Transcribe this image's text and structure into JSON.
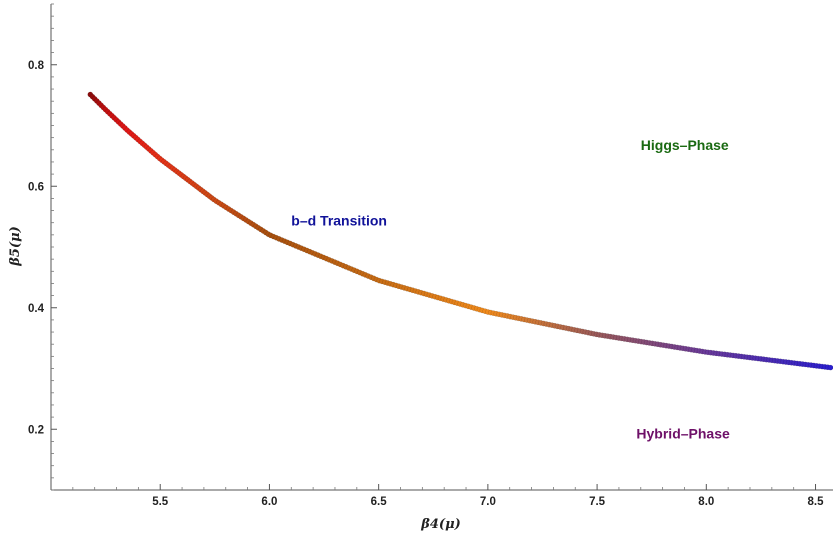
{
  "chart_data": {
    "type": "scatter",
    "title": "",
    "xlabel": "β4(μ)",
    "ylabel": "β5(μ)",
    "xlim": [
      5.0,
      8.58
    ],
    "ylim": [
      0.1,
      0.9
    ],
    "x_ticks": [
      5.5,
      6.0,
      6.5,
      7.0,
      7.5,
      8.0,
      8.5
    ],
    "x_tick_labels": [
      "5.5",
      "6.0",
      "6.5",
      "7.0",
      "7.5",
      "8.0",
      "8.5"
    ],
    "y_ticks": [
      0.2,
      0.4,
      0.6,
      0.8
    ],
    "y_tick_labels": [
      "0.2",
      "0.4",
      "0.6",
      "0.8"
    ],
    "grid": false,
    "series": [
      {
        "x": [
          5.18,
          5.25,
          5.35,
          5.5,
          5.75,
          6.0,
          6.5,
          7.0,
          7.5,
          8.0,
          8.58
        ],
        "y": [
          0.751,
          0.726,
          0.692,
          0.645,
          0.577,
          0.52,
          0.445,
          0.393,
          0.356,
          0.327,
          0.301
        ],
        "point_colors": [
          "#8b0d0d",
          "#c01010",
          "#e11717",
          "#e63218",
          "#cc4a16",
          "#a8500f",
          "#c86d16",
          "#f08a1c",
          "#9a5a5a",
          "#6a3a9a",
          "#2a1ecf"
        ]
      }
    ],
    "annotations": [
      {
        "text": "b–d Transition",
        "x": 6.1,
        "y": 0.535,
        "color": "#101299"
      },
      {
        "text": "Higgs–Phase",
        "x": 7.7,
        "y": 0.66,
        "color": "#1a6a12"
      },
      {
        "text": "Hybrid–Phase",
        "x": 7.68,
        "y": 0.185,
        "color": "#6e1068"
      }
    ]
  }
}
